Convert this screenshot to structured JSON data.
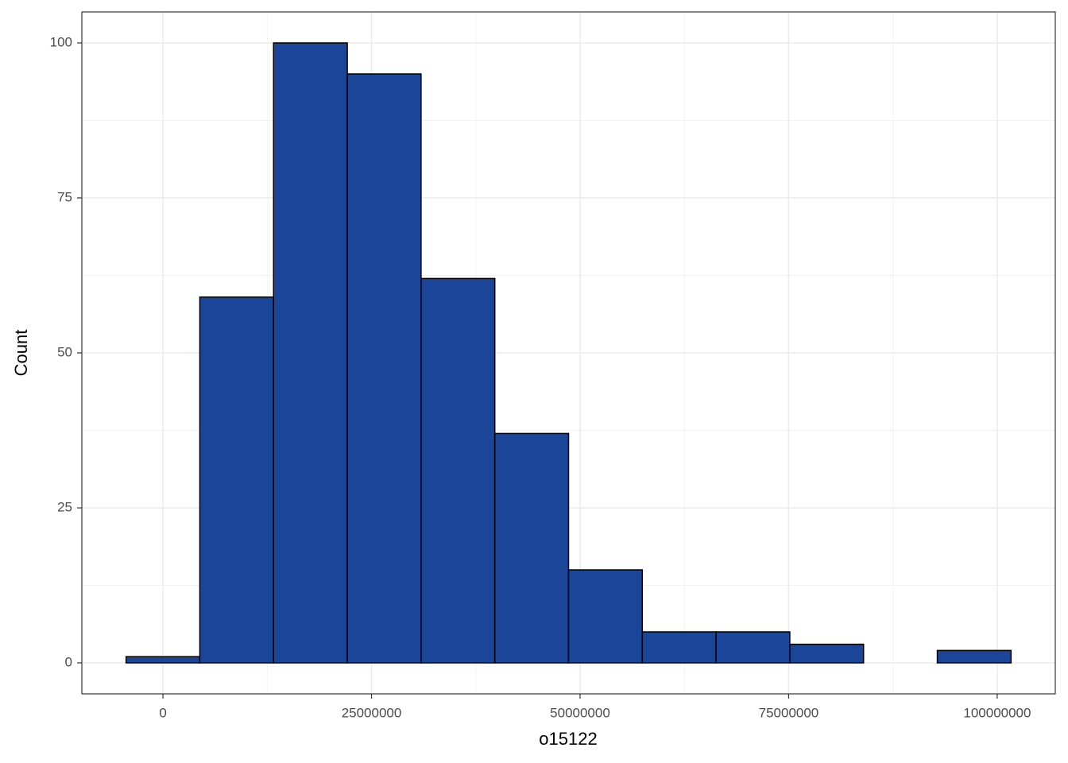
{
  "chart_data": {
    "type": "histogram",
    "x_label": "o15122",
    "y_label": "Count",
    "bins": [
      -4420000,
      4420000,
      13260000,
      22100000,
      30940000,
      39780000,
      48620000,
      57460000,
      66300000,
      75140000,
      83980000,
      92820000,
      101660000
    ],
    "counts": [
      1,
      59,
      100,
      95,
      62,
      37,
      15,
      5,
      5,
      3,
      0,
      2
    ],
    "color": "#1a4599",
    "edge_color": "#000000",
    "xlim": [
      -9720000,
      106960000
    ],
    "ylim": [
      -5,
      105
    ],
    "xticks": [
      0,
      25000000,
      50000000,
      75000000,
      100000000
    ],
    "yticks": [
      0,
      25,
      50,
      75,
      100
    ],
    "xminor": [
      12500000,
      37500000,
      62500000,
      87500000
    ],
    "yminor": [
      12.5,
      37.5,
      62.5,
      87.5
    ],
    "grid": true
  }
}
